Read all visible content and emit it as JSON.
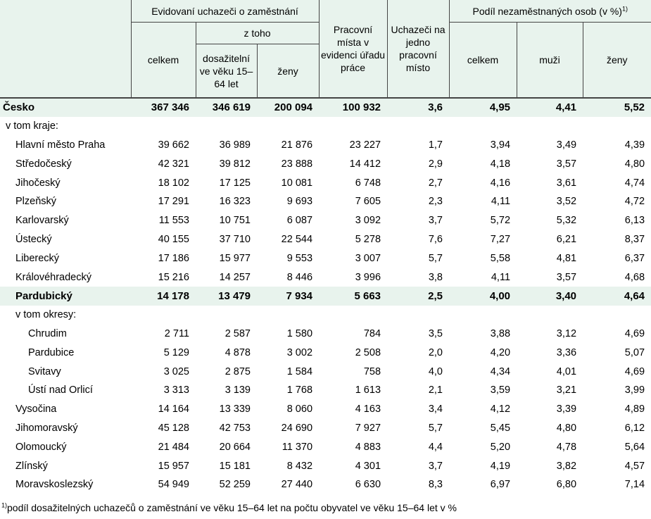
{
  "header": {
    "group_uchazeci": "Evidovaní uchazeči o zaměstnání",
    "z_toho": "z toho",
    "celkem": "celkem",
    "dosazitelni": "dosažitelní ve věku 15–64 let",
    "zeny": "ženy",
    "pracovni_mista": "Pracovní místa v evidenci úřadu práce",
    "uchazeci_na_misto": "Uchazeči na jedno pracovní místo",
    "group_podil": "Podíl nezaměstnaných osob (v %)",
    "group_podil_note": "1)",
    "podil_celkem": "celkem",
    "muzi": "muži",
    "podil_zeny": "ženy"
  },
  "rows": [
    {
      "label": "Česko",
      "level": 0,
      "highlight": true,
      "v": [
        "367 346",
        "346 619",
        "200 094",
        "100 932",
        "3,6",
        "4,95",
        "4,41",
        "5,52"
      ]
    },
    {
      "label": "v tom kraje:",
      "level": 1,
      "highlight": false,
      "v": [
        "",
        "",
        "",
        "",
        "",
        "",
        "",
        ""
      ]
    },
    {
      "label": "Hlavní město Praha",
      "level": 2,
      "highlight": false,
      "v": [
        "39 662",
        "36 989",
        "21 876",
        "23 227",
        "1,7",
        "3,94",
        "3,49",
        "4,39"
      ]
    },
    {
      "label": "Středočeský",
      "level": 2,
      "highlight": false,
      "v": [
        "42 321",
        "39 812",
        "23 888",
        "14 412",
        "2,9",
        "4,18",
        "3,57",
        "4,80"
      ]
    },
    {
      "label": "Jihočeský",
      "level": 2,
      "highlight": false,
      "v": [
        "18 102",
        "17 125",
        "10 081",
        "6 748",
        "2,7",
        "4,16",
        "3,61",
        "4,74"
      ]
    },
    {
      "label": "Plzeňský",
      "level": 2,
      "highlight": false,
      "v": [
        "17 291",
        "16 323",
        "9 693",
        "7 605",
        "2,3",
        "4,11",
        "3,52",
        "4,72"
      ]
    },
    {
      "label": "Karlovarský",
      "level": 2,
      "highlight": false,
      "v": [
        "11 553",
        "10 751",
        "6 087",
        "3 092",
        "3,7",
        "5,72",
        "5,32",
        "6,13"
      ]
    },
    {
      "label": "Ústecký",
      "level": 2,
      "highlight": false,
      "v": [
        "40 155",
        "37 710",
        "22 544",
        "5 278",
        "7,6",
        "7,27",
        "6,21",
        "8,37"
      ]
    },
    {
      "label": "Liberecký",
      "level": 2,
      "highlight": false,
      "v": [
        "17 186",
        "15 977",
        "9 553",
        "3 007",
        "5,7",
        "5,58",
        "4,81",
        "6,37"
      ]
    },
    {
      "label": "Královéhradecký",
      "level": 2,
      "highlight": false,
      "v": [
        "15 216",
        "14 257",
        "8 446",
        "3 996",
        "3,8",
        "4,11",
        "3,57",
        "4,68"
      ]
    },
    {
      "label": "Pardubický",
      "level": 2,
      "highlight": true,
      "v": [
        "14 178",
        "13 479",
        "7 934",
        "5 663",
        "2,5",
        "4,00",
        "3,40",
        "4,64"
      ]
    },
    {
      "label": "v tom okresy:",
      "level": 2,
      "highlight": false,
      "v": [
        "",
        "",
        "",
        "",
        "",
        "",
        "",
        ""
      ]
    },
    {
      "label": "Chrudim",
      "level": 3,
      "highlight": false,
      "v": [
        "2 711",
        "2 587",
        "1 580",
        "784",
        "3,5",
        "3,88",
        "3,12",
        "4,69"
      ]
    },
    {
      "label": "Pardubice",
      "level": 3,
      "highlight": false,
      "v": [
        "5 129",
        "4 878",
        "3 002",
        "2 508",
        "2,0",
        "4,20",
        "3,36",
        "5,07"
      ]
    },
    {
      "label": "Svitavy",
      "level": 3,
      "highlight": false,
      "v": [
        "3 025",
        "2 875",
        "1 584",
        "758",
        "4,0",
        "4,34",
        "4,01",
        "4,69"
      ]
    },
    {
      "label": "Ústí nad Orlicí",
      "level": 3,
      "highlight": false,
      "v": [
        "3 313",
        "3 139",
        "1 768",
        "1 613",
        "2,1",
        "3,59",
        "3,21",
        "3,99"
      ]
    },
    {
      "label": "Vysočina",
      "level": 2,
      "highlight": false,
      "v": [
        "14 164",
        "13 339",
        "8 060",
        "4 163",
        "3,4",
        "4,12",
        "3,39",
        "4,89"
      ]
    },
    {
      "label": "Jihomoravský",
      "level": 2,
      "highlight": false,
      "v": [
        "45 128",
        "42 753",
        "24 690",
        "7 927",
        "5,7",
        "5,45",
        "4,80",
        "6,12"
      ]
    },
    {
      "label": "Olomoucký",
      "level": 2,
      "highlight": false,
      "v": [
        "21 484",
        "20 664",
        "11 370",
        "4 883",
        "4,4",
        "5,20",
        "4,78",
        "5,64"
      ]
    },
    {
      "label": "Zlínský",
      "level": 2,
      "highlight": false,
      "v": [
        "15 957",
        "15 181",
        "8 432",
        "4 301",
        "3,7",
        "4,19",
        "3,82",
        "4,57"
      ]
    },
    {
      "label": "Moravskoslezský",
      "level": 2,
      "highlight": false,
      "v": [
        "54 949",
        "52 259",
        "27 440",
        "6 630",
        "8,3",
        "6,97",
        "6,80",
        "7,14"
      ]
    }
  ],
  "footnote": {
    "mark": "1)",
    "text": "podíl dosažitelných uchazečů o zaměstnání ve věku 15–64 let na počtu obyvatel ve věku 15–64 let v %"
  }
}
